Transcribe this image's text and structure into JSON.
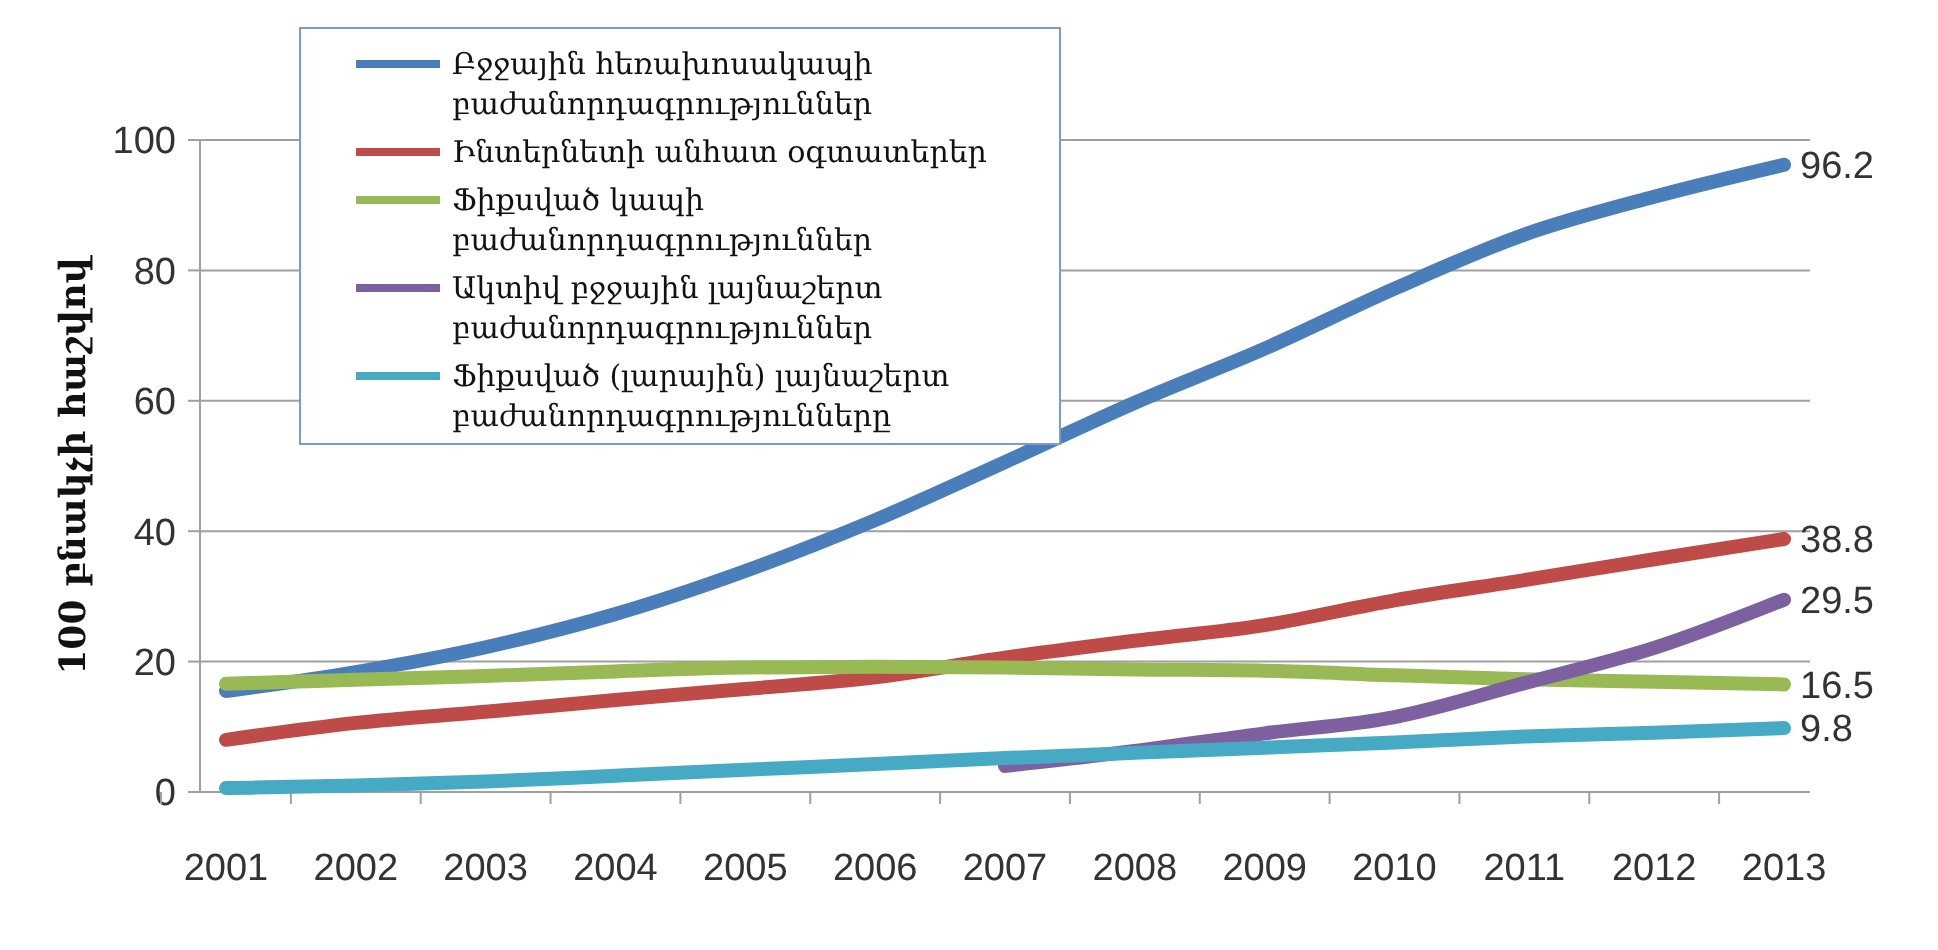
{
  "chart_data": {
    "type": "line",
    "ylabel": "100 բնակչի հաշվով",
    "categories": [
      "2001",
      "2002",
      "2003",
      "2004",
      "2005",
      "2006",
      "2007",
      "2008",
      "2009",
      "2010",
      "2011",
      "2012",
      "2013"
    ],
    "ylim": [
      0,
      100
    ],
    "yticks": [
      0,
      20,
      40,
      60,
      80,
      100
    ],
    "grid": "y",
    "legend": "top left",
    "marker": "none",
    "line_style": "solid",
    "series": [
      {
        "name": "Բջջային հեռախոսակապի բաժանորդագրություններ",
        "color": "#4a7ebb",
        "values": [
          15.5,
          18.4,
          22.2,
          27.3,
          33.9,
          41.7,
          50.6,
          59.7,
          68.0,
          77.2,
          85.5,
          91.3,
          96.2
        ],
        "value_labels": [
          null,
          null,
          null,
          null,
          null,
          null,
          null,
          null,
          null,
          null,
          null,
          null,
          "96.2"
        ]
      },
      {
        "name": "Ինտերնետի անհատ օգտատերեր",
        "color": "#be4b48",
        "values": [
          8.0,
          10.6,
          12.3,
          14.1,
          15.8,
          17.6,
          20.6,
          23.2,
          25.6,
          29.4,
          32.5,
          35.7,
          38.8
        ],
        "value_labels": [
          null,
          null,
          null,
          null,
          null,
          null,
          null,
          null,
          null,
          null,
          null,
          null,
          "38.8"
        ]
      },
      {
        "name": "Ֆիքսված կապի բաժանորդագրություններ",
        "color": "#98b954",
        "values": [
          16.6,
          17.2,
          17.8,
          18.5,
          19.1,
          19.2,
          19.1,
          18.8,
          18.6,
          17.9,
          17.3,
          16.9,
          16.5
        ],
        "value_labels": [
          null,
          null,
          null,
          null,
          null,
          null,
          null,
          null,
          null,
          null,
          null,
          null,
          "16.5"
        ]
      },
      {
        "name": "Ակտիվ բջջային լայնաշերտ բաժանորդագրություններ",
        "color": "#7d60a0",
        "values": [
          null,
          null,
          null,
          null,
          null,
          null,
          4.0,
          6.3,
          9.0,
          11.5,
          16.7,
          22.1,
          29.5
        ],
        "value_labels": [
          null,
          null,
          null,
          null,
          null,
          null,
          null,
          null,
          null,
          null,
          null,
          null,
          "29.5"
        ]
      },
      {
        "name": "Ֆիքսված (լարային) լայնաշերտ բաժանորդագրությունները",
        "color": "#46aac5",
        "values": [
          0.6,
          1.0,
          1.6,
          2.5,
          3.4,
          4.3,
          5.2,
          6.0,
          6.8,
          7.6,
          8.5,
          9.1,
          9.8
        ],
        "value_labels": [
          null,
          null,
          null,
          null,
          null,
          null,
          null,
          null,
          null,
          null,
          null,
          null,
          "9.8"
        ]
      }
    ]
  }
}
